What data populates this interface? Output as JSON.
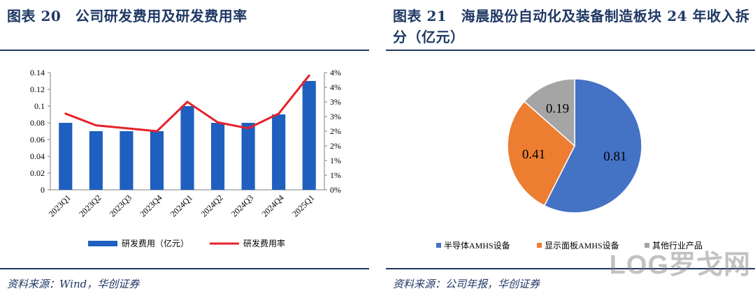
{
  "left": {
    "title": "图表 20　公司研发费用及研发费用率",
    "source": "资料来源：Wind，华创证券"
  },
  "right": {
    "title": "图表 21　海晨股份自动化及装备制造板块 24 年收入拆分（亿元）",
    "source": "资料来源：公司年报，华创证券"
  },
  "watermark": "LOG罗戈网",
  "chart_data": [
    {
      "type": "bar",
      "categories": [
        "2023Q1",
        "2023Q2",
        "2023Q3",
        "2023Q4",
        "2024Q1",
        "2024Q2",
        "2024Q3",
        "2024Q4",
        "2025Q1"
      ],
      "series": [
        {
          "name": "研发费用（亿元）",
          "type": "bar",
          "axis": "left",
          "color": "#1f5fbf",
          "values": [
            0.08,
            0.07,
            0.07,
            0.07,
            0.1,
            0.08,
            0.08,
            0.09,
            0.13
          ]
        },
        {
          "name": "研发费用率",
          "type": "line",
          "axis": "right",
          "color": "#e8212b",
          "values": [
            2.6,
            2.2,
            2.1,
            2.0,
            3.0,
            2.3,
            2.1,
            2.6,
            3.9
          ]
        }
      ],
      "ylim": [
        0,
        0.14
      ],
      "yticks": [
        "0",
        "0.02",
        "0.04",
        "0.06",
        "0.08",
        "0.1",
        "0.12",
        "0.14"
      ],
      "y2lim": [
        0,
        4
      ],
      "y2ticks": [
        "0%",
        "1%",
        "1%",
        "2%",
        "2%",
        "3%",
        "3%",
        "4%",
        "4%"
      ],
      "legend_position": "bottom",
      "grid": false
    },
    {
      "type": "pie",
      "labels": [
        "半导体AMHS设备",
        "显示面板AMHS设备",
        "其他行业产品"
      ],
      "values": [
        0.81,
        0.41,
        0.19
      ],
      "value_labels": [
        "0.81",
        "0.41",
        "0.19"
      ],
      "colors": [
        "#4472c4",
        "#ed7d31",
        "#a5a5a5"
      ],
      "legend_position": "bottom"
    }
  ]
}
